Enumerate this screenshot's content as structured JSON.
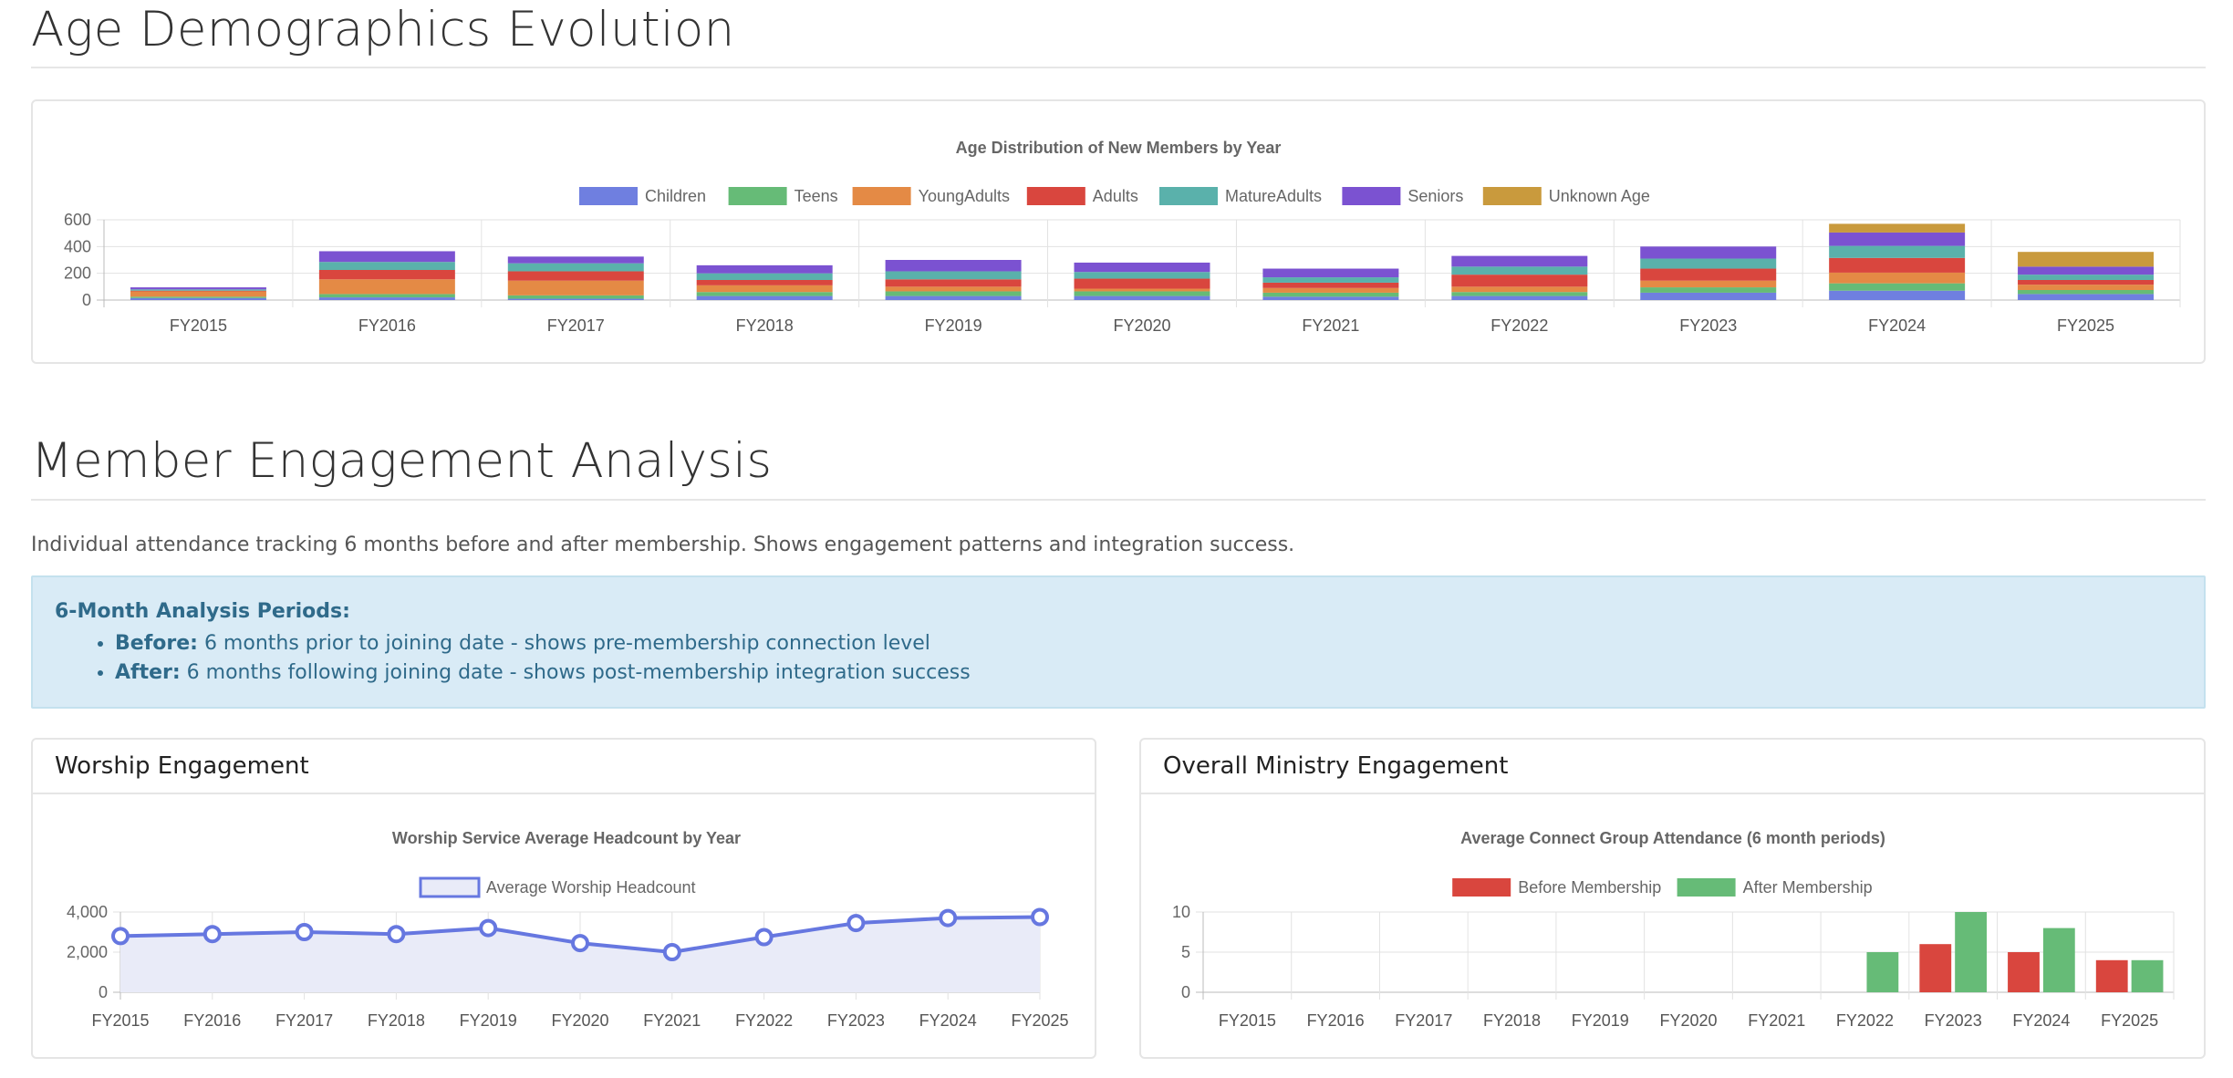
{
  "age_section": {
    "title": "Age Demographics Evolution"
  },
  "engagement_section": {
    "title": "Member Engagement Analysis",
    "description": "Individual attendance tracking 6 months before and after membership. Shows engagement patterns and integration success.",
    "info": {
      "heading": "6-Month Analysis Periods:",
      "items": [
        {
          "label": "Before:",
          "text": " 6 months prior to joining date - shows pre-membership connection level"
        },
        {
          "label": "After:",
          "text": " 6 months following joining date - shows post-membership integration success"
        }
      ]
    }
  },
  "worship_card": {
    "header": "Worship Engagement"
  },
  "ministry_card": {
    "header": "Overall Ministry Engagement"
  },
  "chart_data": [
    {
      "type": "bar",
      "stacked": true,
      "title": "Age Distribution of New Members by Year",
      "categories": [
        "FY2015",
        "FY2016",
        "FY2017",
        "FY2018",
        "FY2019",
        "FY2020",
        "FY2021",
        "FY2022",
        "FY2023",
        "FY2024",
        "FY2025"
      ],
      "ylim": [
        0,
        600
      ],
      "yticks": [
        0,
        200,
        400,
        600
      ],
      "legend_position": "top",
      "grid": true,
      "series": [
        {
          "name": "Children",
          "color": "#6f7fe0",
          "values": [
            15,
            20,
            10,
            30,
            30,
            30,
            25,
            30,
            55,
            70,
            45
          ]
        },
        {
          "name": "Teens",
          "color": "#66bb77",
          "values": [
            10,
            25,
            25,
            30,
            35,
            35,
            30,
            30,
            40,
            55,
            30
          ]
        },
        {
          "name": "YoungAdults",
          "color": "#e48a45",
          "values": [
            40,
            110,
            110,
            50,
            35,
            20,
            35,
            40,
            50,
            80,
            40
          ]
        },
        {
          "name": "Adults",
          "color": "#d9463e",
          "values": [
            5,
            70,
            70,
            40,
            55,
            75,
            40,
            90,
            90,
            110,
            35
          ]
        },
        {
          "name": "MatureAdults",
          "color": "#5ab1ab",
          "values": [
            10,
            60,
            60,
            50,
            60,
            50,
            40,
            60,
            75,
            90,
            40
          ]
        },
        {
          "name": "Seniors",
          "color": "#7b52d1",
          "values": [
            15,
            80,
            50,
            60,
            85,
            70,
            65,
            80,
            90,
            100,
            60
          ]
        },
        {
          "name": "Unknown Age",
          "color": "#c99a3d",
          "values": [
            0,
            0,
            0,
            0,
            0,
            0,
            0,
            0,
            0,
            65,
            110
          ]
        }
      ]
    },
    {
      "type": "line",
      "title": "Worship Service Average Headcount by Year",
      "categories": [
        "FY2015",
        "FY2016",
        "FY2017",
        "FY2018",
        "FY2019",
        "FY2020",
        "FY2021",
        "FY2022",
        "FY2023",
        "FY2024",
        "FY2025"
      ],
      "ylim": [
        0,
        4000
      ],
      "yticks": [
        "0",
        "2,000",
        "4,000"
      ],
      "ytick_values": [
        0,
        2000,
        4000
      ],
      "legend_position": "top",
      "grid": true,
      "series": [
        {
          "name": "Average Worship Headcount",
          "color": "#6677e0",
          "fill": "#e9ebf8",
          "values": [
            2800,
            2900,
            3000,
            2900,
            3200,
            2450,
            2000,
            2750,
            3450,
            3700,
            3750
          ]
        }
      ]
    },
    {
      "type": "bar",
      "title": "Average Connect Group Attendance (6 month periods)",
      "categories": [
        "FY2015",
        "FY2016",
        "FY2017",
        "FY2018",
        "FY2019",
        "FY2020",
        "FY2021",
        "FY2022",
        "FY2023",
        "FY2024",
        "FY2025"
      ],
      "ylim": [
        0,
        10
      ],
      "yticks": [
        0,
        5,
        10
      ],
      "legend_position": "top",
      "grid": true,
      "series": [
        {
          "name": "Before Membership",
          "color": "#d9463e",
          "values": [
            0,
            0,
            0,
            0,
            0,
            0,
            0,
            0,
            6,
            5,
            4
          ]
        },
        {
          "name": "After Membership",
          "color": "#66bb77",
          "values": [
            0,
            0,
            0,
            0,
            0,
            0,
            0,
            5,
            10,
            8,
            4
          ]
        }
      ]
    }
  ]
}
